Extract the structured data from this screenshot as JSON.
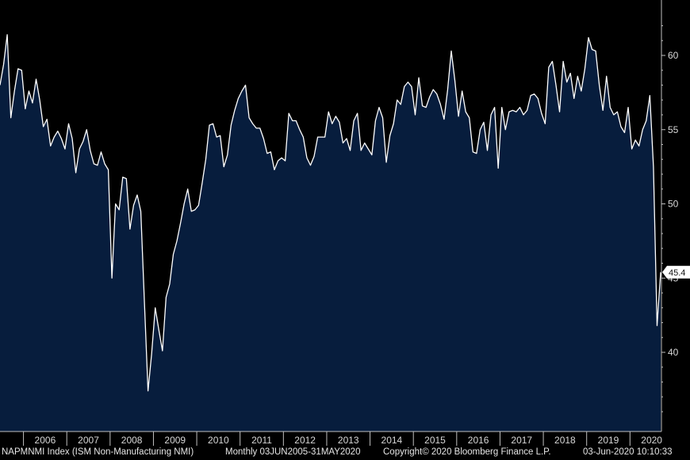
{
  "chart_data": {
    "type": "area",
    "ylim": [
      35,
      63
    ],
    "yticks": [
      40,
      45,
      50,
      55,
      60
    ],
    "year_labels": [
      "2006",
      "2007",
      "2008",
      "2009",
      "2010",
      "2011",
      "2012",
      "2013",
      "2014",
      "2015",
      "2016",
      "2017",
      "2018",
      "2019",
      "2020"
    ],
    "last_value_label": "45.4",
    "series": [
      {
        "values": [
          58.0,
          59.4,
          61.4,
          55.8,
          57.6,
          59.1,
          59.0,
          56.4,
          57.6,
          56.8,
          58.4,
          57.0,
          55.2,
          55.7,
          53.9,
          54.5,
          54.9,
          54.4,
          53.7,
          55.4,
          54.4,
          52.1,
          53.7,
          54.2,
          55.0,
          53.6,
          52.7,
          52.6,
          53.5,
          52.7,
          52.3,
          45.0,
          50.0,
          49.6,
          51.8,
          51.7,
          48.3,
          49.9,
          50.6,
          49.5,
          43.4,
          37.4,
          39.9,
          43.0,
          41.5,
          40.1,
          43.7,
          44.6,
          46.6,
          47.5,
          48.7,
          50.0,
          51.0,
          49.5,
          49.6,
          49.9,
          51.4,
          53.0,
          55.3,
          55.4,
          54.5,
          54.6,
          52.5,
          53.3,
          55.3,
          56.3,
          57.1,
          57.6,
          58.0,
          55.8,
          55.4,
          55.1,
          55.1,
          54.4,
          53.4,
          53.5,
          52.3,
          52.9,
          53.1,
          52.9,
          56.1,
          55.6,
          55.6,
          55.0,
          54.5,
          53.1,
          52.6,
          53.2,
          54.5,
          54.5,
          54.5,
          56.2,
          55.4,
          55.9,
          55.5,
          54.1,
          54.4,
          53.6,
          55.6,
          56.1,
          53.6,
          54.1,
          53.7,
          53.3,
          55.6,
          56.5,
          55.8,
          52.8,
          54.6,
          55.4,
          57.0,
          56.7,
          57.9,
          58.2,
          57.9,
          56.0,
          58.5,
          56.6,
          56.5,
          57.2,
          57.7,
          57.4,
          56.7,
          55.7,
          57.7,
          60.3,
          58.3,
          55.9,
          57.6,
          56.2,
          55.8,
          53.5,
          53.4,
          55.0,
          55.5,
          53.6,
          56.0,
          56.5,
          52.4,
          56.5,
          55.0,
          56.2,
          56.3,
          56.2,
          56.5,
          56.0,
          56.3,
          57.3,
          57.4,
          57.1,
          56.1,
          55.4,
          59.2,
          59.6,
          58.0,
          56.2,
          59.6,
          58.2,
          58.8,
          57.1,
          58.6,
          57.6,
          59.1,
          61.2,
          60.4,
          60.3,
          58.0,
          56.3,
          58.6,
          56.5,
          56.0,
          56.2,
          55.2,
          54.8,
          56.5,
          53.7,
          54.3,
          53.9,
          55.0,
          55.6,
          57.3,
          52.5,
          41.8,
          45.4
        ]
      }
    ]
  },
  "colors": {
    "background": "#000000",
    "fill": "#071d3d",
    "line": "#ffffff",
    "axis": "#c0c0c0",
    "text": "#d8d8d8"
  },
  "footer": {
    "ticker": "NAPMNMI Index (ISM Non-Manufacturing NMI)",
    "frequency": "Monthly 03JUN2005-31MAY2020",
    "copyright": "Copyright© 2020 Bloomberg Finance L.P.",
    "timestamp": "03-Jun-2020 10:10:33"
  }
}
